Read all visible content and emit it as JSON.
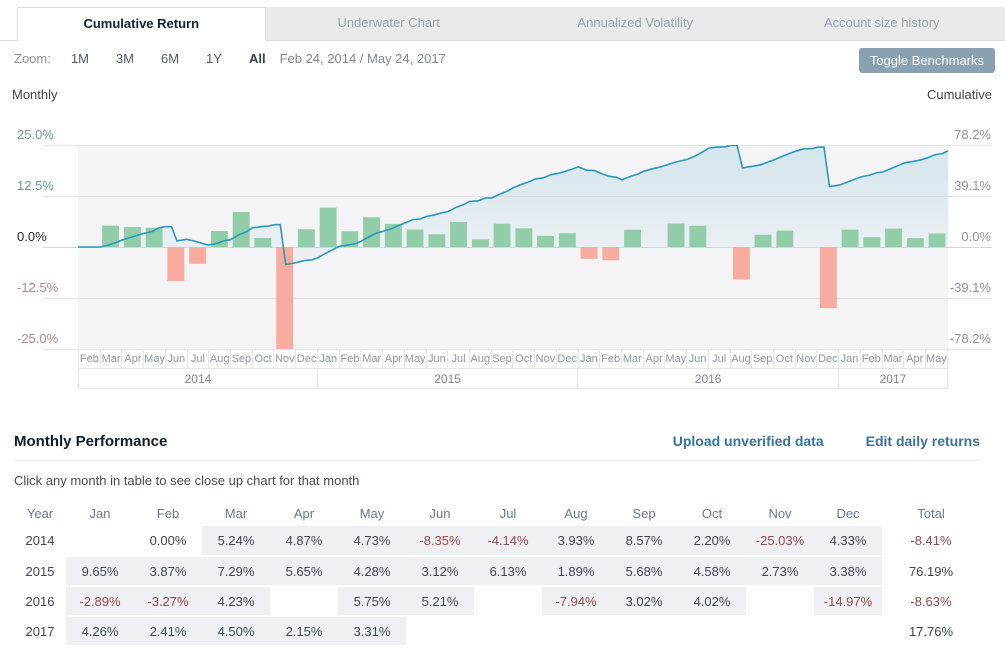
{
  "tabs": [
    {
      "label": "Cumulative Return",
      "active": true
    },
    {
      "label": "Underwater Chart",
      "active": false
    },
    {
      "label": "Annualized Volatility",
      "active": false
    },
    {
      "label": "Account size history",
      "active": false
    }
  ],
  "toolbar": {
    "zoom_label": "Zoom:",
    "ranges": [
      "1M",
      "3M",
      "6M",
      "1Y",
      "All"
    ],
    "active_range": "All",
    "date_range": "Feb 24, 2014 / May 24, 2017",
    "toggle_benchmarks_label": "Toggle Benchmarks"
  },
  "chart_data": {
    "type": "combo",
    "months": [
      "Feb",
      "Mar",
      "Apr",
      "May",
      "Jun",
      "Jul",
      "Aug",
      "Sep",
      "Oct",
      "Nov",
      "Dec",
      "Jan",
      "Feb",
      "Mar",
      "Apr",
      "May",
      "Jun",
      "Jul",
      "Aug",
      "Sep",
      "Oct",
      "Nov",
      "Dec",
      "Jan",
      "Feb",
      "Mar",
      "Apr",
      "May",
      "Jun",
      "Jul",
      "Aug",
      "Sep",
      "Oct",
      "Nov",
      "Dec",
      "Jan",
      "Feb",
      "Mar",
      "Apr",
      "May"
    ],
    "year_groups": [
      {
        "label": "2014",
        "months": 11
      },
      {
        "label": "2015",
        "months": 12
      },
      {
        "label": "2016",
        "months": 12
      },
      {
        "label": "2017",
        "months": 5
      }
    ],
    "series": [
      {
        "name": "Monthly",
        "type": "bar",
        "values": [
          0.0,
          5.24,
          4.87,
          4.73,
          -8.35,
          -4.14,
          3.93,
          8.57,
          2.2,
          -25.03,
          4.33,
          9.65,
          3.87,
          7.29,
          5.65,
          4.28,
          3.12,
          6.13,
          1.89,
          5.68,
          4.58,
          2.73,
          3.38,
          -2.89,
          -3.27,
          4.23,
          null,
          5.75,
          5.21,
          null,
          -7.94,
          3.02,
          4.02,
          null,
          -14.97,
          4.26,
          2.41,
          4.5,
          2.15,
          3.31
        ]
      },
      {
        "name": "Cumulative",
        "type": "line",
        "values": [
          0.0,
          5.24,
          10.37,
          15.59,
          5.94,
          1.55,
          5.54,
          14.59,
          17.11,
          -12.21,
          -8.41,
          0.43,
          4.32,
          11.92,
          18.25,
          23.31,
          27.16,
          34.95,
          37.51,
          45.32,
          51.97,
          56.12,
          61.4,
          56.73,
          51.61,
          58.02,
          62.5,
          67.11,
          75.82,
          78.0,
          61.86,
          66.75,
          73.45,
          76.5,
          47.48,
          53.77,
          57.47,
          64.56,
          68.1,
          73.66
        ]
      }
    ],
    "left_axis": {
      "title": "Monthly",
      "ticks": [
        "25.0%",
        "12.5%",
        "0.0%",
        "-12.5%",
        "-25.0%"
      ],
      "range": [
        -25,
        25
      ]
    },
    "right_axis": {
      "title": "Cumulative",
      "ticks": [
        "78.2%",
        "39.1%",
        "0.0%",
        "-39.1%",
        "-78.2%"
      ],
      "range": [
        -78.2,
        78.2
      ]
    },
    "colors": {
      "bar_positive": "#92cdaa",
      "bar_negative": "#f8aca0",
      "line": "#2a98b8",
      "plot_bg": "#f4f4f6",
      "grid": "#e3e5e9"
    }
  },
  "performance": {
    "title": "Monthly Performance",
    "upload_link": "Upload unverified data",
    "edit_link": "Edit daily returns",
    "hint": "Click any month in table to see close up chart for that month",
    "columns": [
      "Year",
      "Jan",
      "Feb",
      "Mar",
      "Apr",
      "May",
      "Jun",
      "Jul",
      "Aug",
      "Sep",
      "Oct",
      "Nov",
      "Dec",
      "Total"
    ],
    "rows": [
      {
        "year": "2014",
        "values": [
          null,
          "0.00%",
          "5.24%",
          "4.87%",
          "4.73%",
          "-8.35%",
          "-4.14%",
          "3.93%",
          "8.57%",
          "2.20%",
          "-25.03%",
          "4.33%"
        ],
        "shaded": [
          0,
          0,
          1,
          1,
          1,
          1,
          1,
          1,
          1,
          1,
          1,
          1
        ],
        "total": "-8.41%"
      },
      {
        "year": "2015",
        "values": [
          "9.65%",
          "3.87%",
          "7.29%",
          "5.65%",
          "4.28%",
          "3.12%",
          "6.13%",
          "1.89%",
          "5.68%",
          "4.58%",
          "2.73%",
          "3.38%"
        ],
        "shaded": [
          1,
          1,
          1,
          1,
          1,
          1,
          1,
          1,
          1,
          1,
          1,
          1
        ],
        "total": "76.19%"
      },
      {
        "year": "2016",
        "values": [
          "-2.89%",
          "-3.27%",
          "4.23%",
          null,
          "5.75%",
          "5.21%",
          null,
          "-7.94%",
          "3.02%",
          "4.02%",
          null,
          "-14.97%"
        ],
        "shaded": [
          1,
          1,
          1,
          0,
          1,
          1,
          0,
          1,
          1,
          1,
          0,
          1
        ],
        "total": "-8.63%"
      },
      {
        "year": "2017",
        "values": [
          "4.26%",
          "2.41%",
          "4.50%",
          "2.15%",
          "3.31%",
          null,
          null,
          null,
          null,
          null,
          null,
          null
        ],
        "shaded": [
          1,
          1,
          1,
          1,
          1,
          0,
          0,
          0,
          0,
          0,
          0,
          0
        ],
        "total": "17.76%"
      }
    ]
  }
}
